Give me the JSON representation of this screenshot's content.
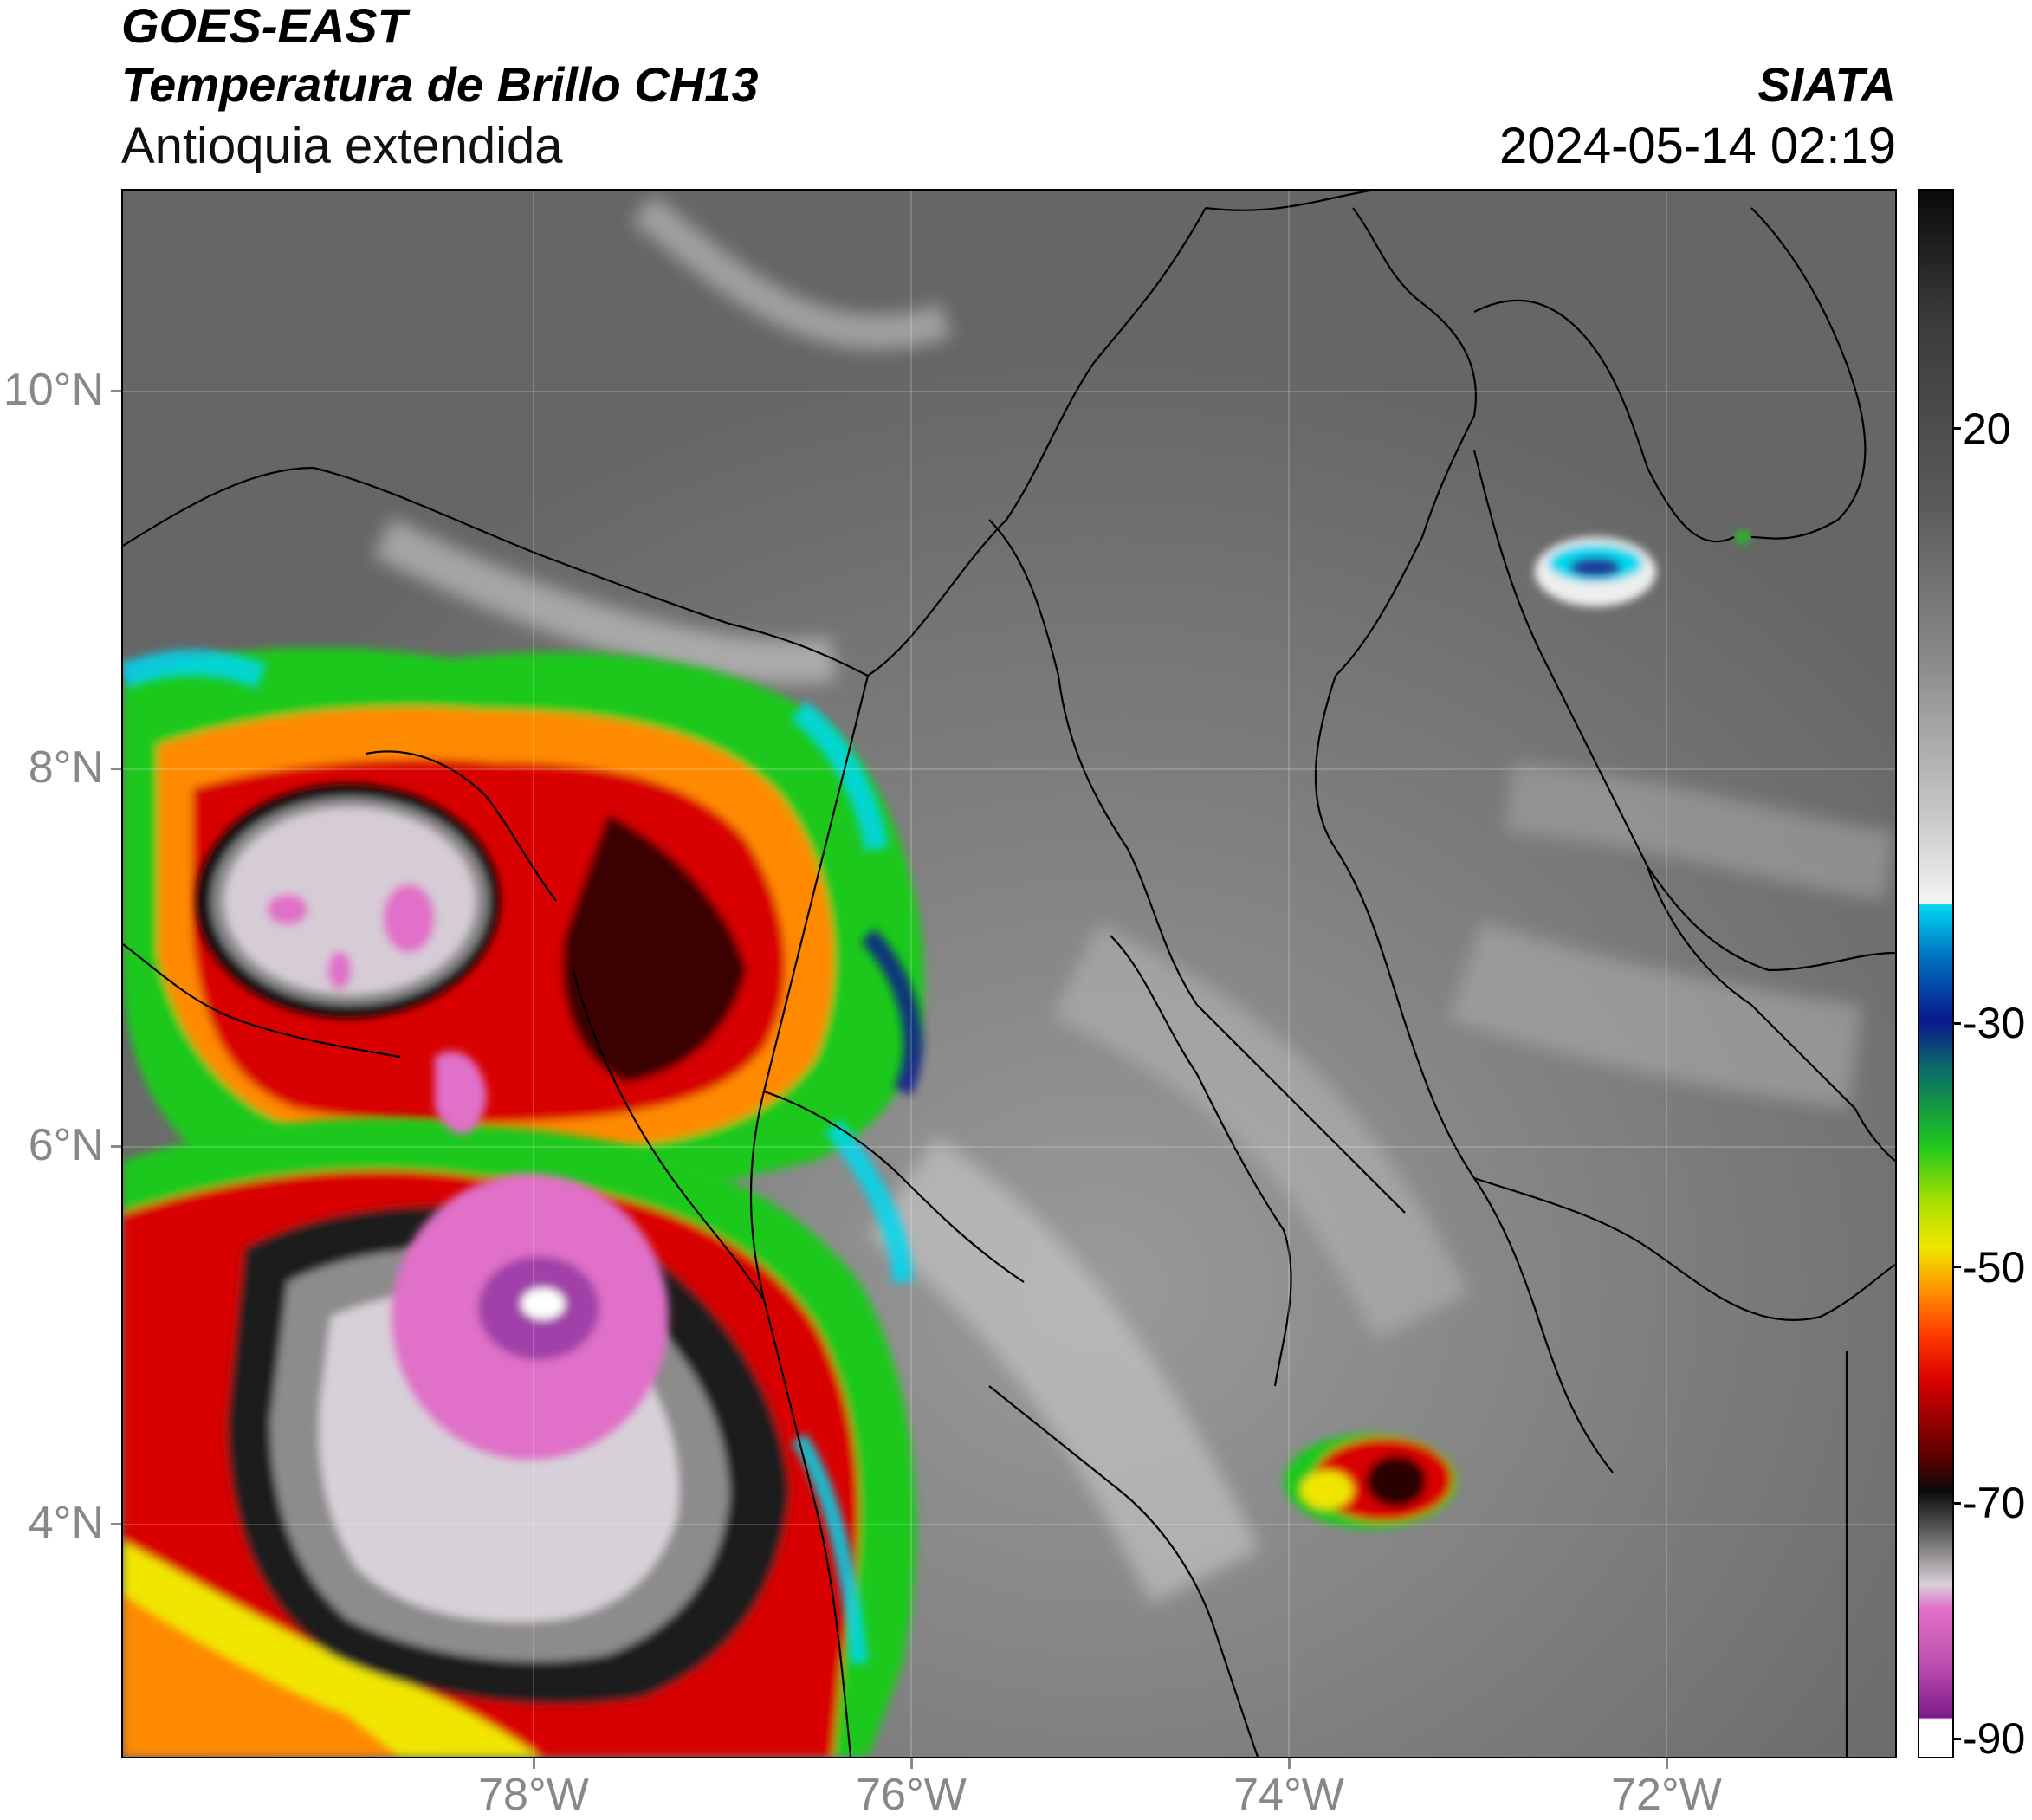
{
  "header": {
    "satellite": "GOES-EAST",
    "product": "Temperatura de Brillo CH13",
    "region": "Antioquia extendida",
    "agency": "SIATA",
    "datetime": "2024-05-14 02:19"
  },
  "map": {
    "lat_ticks": [
      "10°N",
      "8°N",
      "6°N",
      "4°N"
    ],
    "lon_ticks": [
      "78°W",
      "76°W",
      "74°W",
      "72°W"
    ],
    "lon_range": [
      -80.2,
      -70.8
    ],
    "lat_range": [
      2.7,
      11.0
    ]
  },
  "colorbar": {
    "ticks": [
      "20",
      "-30",
      "-50",
      "-70",
      "-90"
    ],
    "range": [
      -92,
      35
    ],
    "palette": {
      "warm_gray": "#5a5a5a",
      "cool_white": "#f2f2f2",
      "cyan": "#00d8f0",
      "blue": "#0a1a8c",
      "green": "#1ec81e",
      "yellow": "#f0e600",
      "orange": "#ff8a00",
      "red": "#d80000",
      "dark_red": "#5a0000",
      "black": "#0a0a0a",
      "light_gray": "#d8d0d8",
      "pink": "#e070c8",
      "purple": "#7a1a8a"
    }
  }
}
